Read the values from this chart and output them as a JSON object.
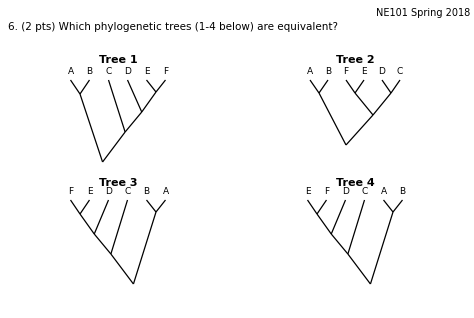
{
  "header_right": "NE101 Spring 2018",
  "question": "6. (2 pts) Which phylogenetic trees (1-4 below) are equivalent?",
  "bg_color": "#ffffff",
  "line_color": "#000000",
  "label_fontsize": 6.5,
  "title_fontsize": 8,
  "question_fontsize": 7.5,
  "header_fontsize": 7,
  "trees": [
    {
      "title": "Tree 1",
      "leaves": [
        "A",
        "B",
        "C",
        "D",
        "E",
        "F"
      ],
      "type": "t1"
    },
    {
      "title": "Tree 2",
      "leaves": [
        "A",
        "B",
        "F",
        "E",
        "D",
        "C"
      ],
      "type": "t2"
    },
    {
      "title": "Tree 3",
      "leaves": [
        "F",
        "E",
        "D",
        "C",
        "B",
        "A"
      ],
      "type": "t3"
    },
    {
      "title": "Tree 4",
      "leaves": [
        "E",
        "F",
        "D",
        "C",
        "A",
        "B"
      ],
      "type": "t4"
    }
  ]
}
